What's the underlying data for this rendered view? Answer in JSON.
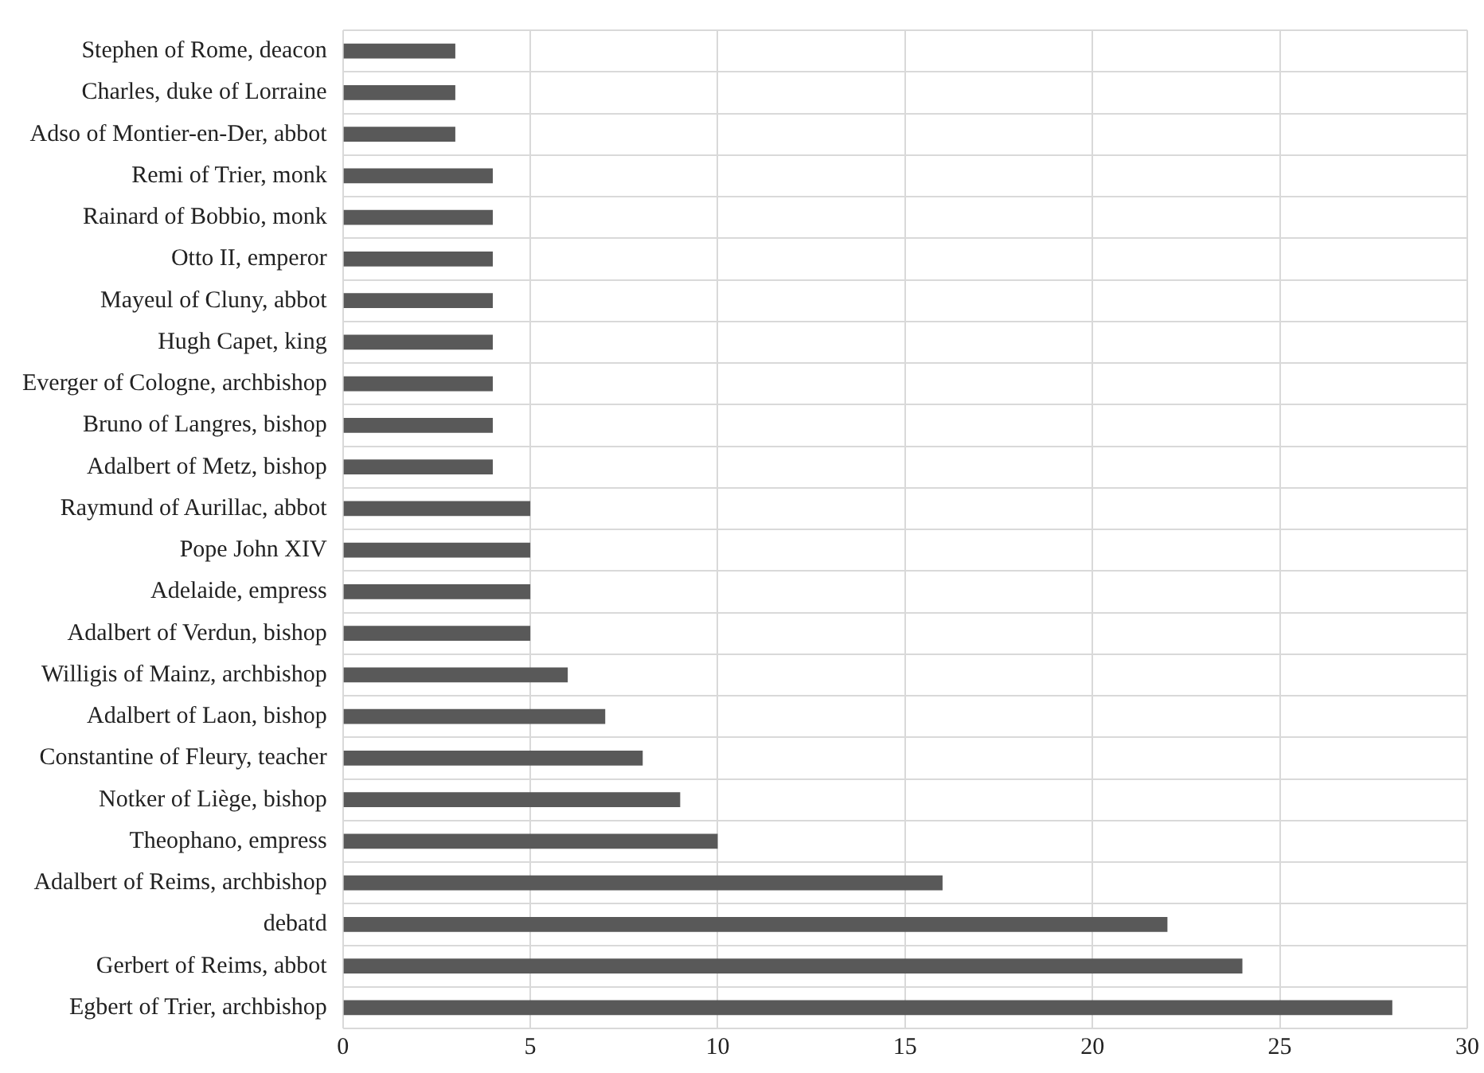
{
  "chart_data": {
    "type": "bar",
    "orientation": "horizontal",
    "categories": [
      "Stephen of Rome, deacon",
      "Charles, duke of Lorraine",
      "Adso of Montier-en-Der, abbot",
      "Remi of Trier, monk",
      "Rainard of Bobbio, monk",
      "Otto II, emperor",
      "Mayeul of Cluny, abbot",
      "Hugh Capet, king",
      "Everger of Cologne, archbishop",
      "Bruno of Langres, bishop",
      "Adalbert of Metz, bishop",
      "Raymund of Aurillac, abbot",
      "Pope John XIV",
      "Adelaide, empress",
      "Adalbert of Verdun, bishop",
      "Willigis of Mainz, archbishop",
      "Adalbert of Laon, bishop",
      "Constantine of Fleury, teacher",
      "Notker of Liège, bishop",
      "Theophano, empress",
      "Adalbert of Reims, archbishop",
      "debatd",
      "Gerbert of Reims, abbot",
      "Egbert of Trier, archbishop"
    ],
    "values": [
      3,
      3,
      3,
      4,
      4,
      4,
      4,
      4,
      4,
      4,
      4,
      5,
      5,
      5,
      5,
      6,
      7,
      8,
      9,
      10,
      16,
      22,
      24,
      28
    ],
    "color": "#595959",
    "xlim": [
      0,
      30
    ],
    "xticks": [
      0,
      5,
      10,
      15,
      20,
      25,
      30
    ],
    "grid": true
  }
}
